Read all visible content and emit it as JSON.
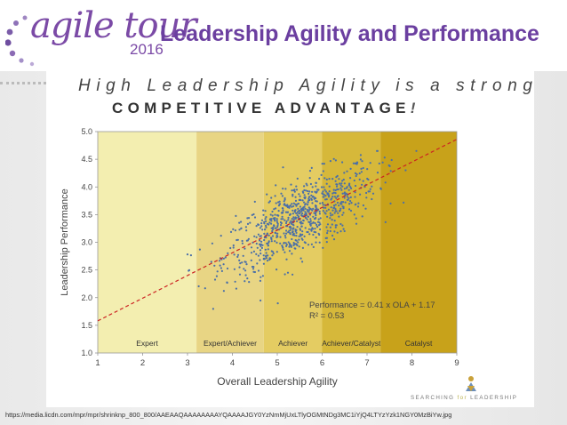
{
  "header": {
    "logo_text": "agile tour",
    "logo_year": "2016",
    "title": "Leadership Agility and Performance"
  },
  "slide": {
    "headline_1": "High Leadership Agility is a strong",
    "headline_2": "COMPETITIVE ADVANTAGE",
    "headline_2_suffix": "!",
    "source_url": "https://media.licdn.com/mpr/mpr/shrinknp_800_800/AAEAAQAAAAAAAAYQAAAAJGY0YzNmMjUxLTlyOGMtNDg3MC1iYjQ4LTYzYzk1NGY0MzBiYw.jpg",
    "brand": {
      "line1": "SEARCHING",
      "line_for": "for",
      "line2": "LEADERSHIP",
      "icon": "figure-icon"
    }
  },
  "chart_data": {
    "type": "scatter",
    "xlabel": "Overall Leadership Agility",
    "ylabel": "Leadership Performance",
    "xlim": [
      1,
      9
    ],
    "ylim": [
      1.0,
      5.0
    ],
    "x_ticks": [
      "1",
      "2",
      "3",
      "4",
      "5",
      "6",
      "7",
      "8",
      "9"
    ],
    "y_ticks": [
      "1.0",
      "1.5",
      "2.0",
      "2.5",
      "3.0",
      "3.5",
      "4.0",
      "4.5",
      "5.0"
    ],
    "bands": [
      {
        "label": "Expert",
        "from": 1,
        "to": 3.2,
        "color": "#f3eeb0"
      },
      {
        "label": "Expert/Achiever",
        "from": 3.2,
        "to": 4.7,
        "color": "#e8d584"
      },
      {
        "label": "Achiever",
        "from": 4.7,
        "to": 6.0,
        "color": "#e4cc62"
      },
      {
        "label": "Achiever/Catalyst",
        "from": 6.0,
        "to": 7.3,
        "color": "#d6b83a"
      },
      {
        "label": "Catalyst",
        "from": 7.3,
        "to": 9,
        "color": "#c8a21a"
      }
    ],
    "trendline": {
      "slope": 0.41,
      "intercept": 1.17,
      "color": "#cc2222"
    },
    "annotation_1": "Performance = 0.41 x OLA + 1.17",
    "annotation_2": "R² = 0.53",
    "point_color": "#4a6fa8",
    "point_cloud": {
      "count": 820,
      "x_center": 5.5,
      "x_spread": 0.85,
      "x_range": [
        3.0,
        8.1
      ],
      "residual_spread": 0.33
    }
  }
}
